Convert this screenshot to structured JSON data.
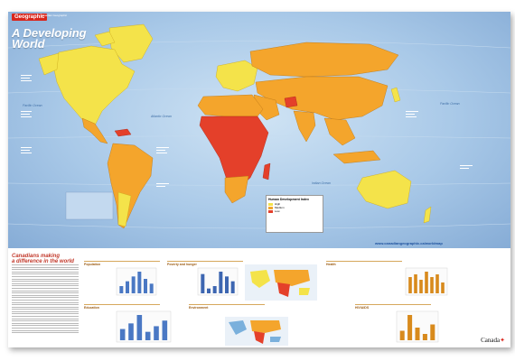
{
  "brand": {
    "name": "Geographic",
    "subtitle": "Canadian Geographic"
  },
  "map": {
    "title_line1": "A Developing",
    "title_line2": "World",
    "oceans": [
      "Pacific Ocean",
      "Atlantic Ocean",
      "Indian Ocean",
      "Pacific Ocean"
    ],
    "legend": {
      "title": "Human Development Index",
      "levels": [
        {
          "label": "High",
          "color": "#f4e34a"
        },
        {
          "label": "Medium",
          "color": "#f4a52c"
        },
        {
          "label": "Low",
          "color": "#e4402a"
        }
      ]
    },
    "url": "www.canadiangeographic.ca/worldmap",
    "colors": {
      "ocean": "#a9c9e8",
      "high": "#f4e34a",
      "medium": "#f4a52c",
      "low": "#e4402a",
      "caribbean": "#e4402a"
    }
  },
  "bottom": {
    "headline_line1": "Canadians making",
    "headline_line2": "a difference in the world",
    "panels": [
      "Population",
      "Poverty and hunger",
      "Health",
      "Education",
      "Environment",
      "HIV/AIDS"
    ],
    "footer": "Canada"
  },
  "chart_data": [
    {
      "type": "bar",
      "categories": [
        "1",
        "2",
        "3",
        "4",
        "5",
        "6"
      ],
      "values": [
        3,
        5,
        7,
        9,
        6,
        4
      ]
    },
    {
      "type": "bar",
      "categories": [
        "1",
        "2",
        "3",
        "4",
        "5",
        "6"
      ],
      "values": [
        8,
        2,
        3,
        9,
        7,
        5
      ]
    },
    {
      "type": "bar",
      "categories": [
        "1",
        "2",
        "3",
        "4",
        "5",
        "6",
        "7"
      ],
      "values": [
        6,
        7,
        5,
        8,
        6,
        7,
        4
      ]
    },
    {
      "type": "bar",
      "categories": [
        "1",
        "2",
        "3",
        "4",
        "5",
        "6"
      ],
      "values": [
        4,
        6,
        9,
        3,
        5,
        7
      ]
    },
    {
      "type": "bar",
      "categories": [
        "1",
        "2",
        "3",
        "4",
        "5",
        "6"
      ],
      "values": [
        2,
        3,
        9,
        4,
        3,
        2
      ]
    },
    {
      "type": "bar",
      "categories": [
        "1",
        "2",
        "3",
        "4",
        "5"
      ],
      "values": [
        3,
        8,
        4,
        2,
        5
      ]
    }
  ]
}
